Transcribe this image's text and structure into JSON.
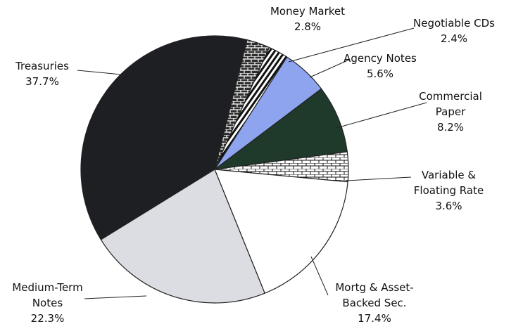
{
  "chart_data": {
    "type": "pie",
    "categories": [
      "Money Market",
      "Negotiable CDs",
      "Agency Notes",
      "Commercial Paper",
      "Variable & Floating Rate",
      "Mortg & Asset-Backed Sec.",
      "Medium-Term Notes",
      "Treasuries"
    ],
    "values": [
      2.8,
      2.4,
      5.6,
      8.2,
      3.6,
      17.4,
      22.3,
      37.7
    ],
    "value_labels": [
      "2.8%",
      "2.4%",
      "5.6%",
      "8.2%",
      "3.6%",
      "17.4%",
      "22.3%",
      "37.7%"
    ],
    "colors": [
      "#2e2e2e",
      "#ffffff",
      "#8fa4ef",
      "#1f3a2b",
      "#ffffff",
      "#ffffff",
      "#dcdde3",
      "#1d1f23"
    ]
  }
}
